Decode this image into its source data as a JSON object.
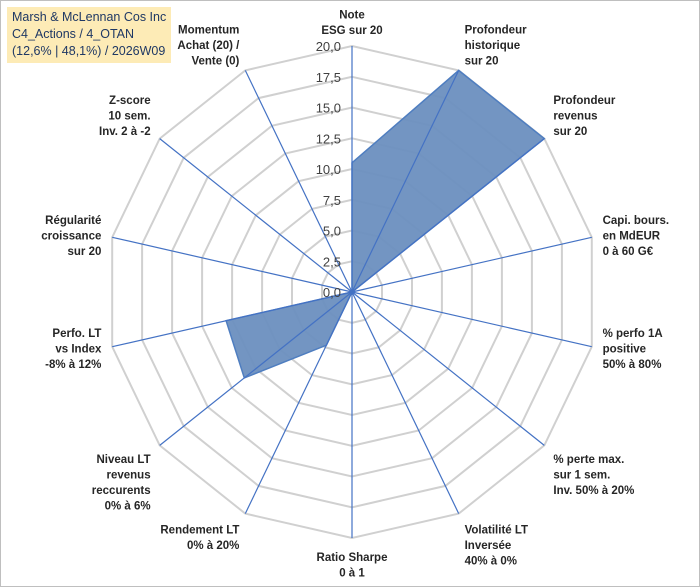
{
  "title": {
    "line1": "Marsh & McLennan Cos Inc",
    "line2": "C4_Actions / 4_OTAN",
    "line3": "(12,6% | 48,1%) / 2026W09"
  },
  "colors": {
    "fill": "#6b8fbf",
    "stroke": "#4f7ec0",
    "grid": "#d0d0d0",
    "spoke": "#4472c4",
    "title_bg": "#fdebb6"
  },
  "chart_data": {
    "type": "radar",
    "ylim": [
      0,
      20
    ],
    "tick_step": 2.5,
    "tick_labels": [
      "0,0",
      "2,5",
      "5,0",
      "7,5",
      "10,0",
      "12,5",
      "15,0",
      "17,5",
      "20,0"
    ],
    "axes": [
      {
        "label": [
          "Note",
          "ESG sur 20"
        ],
        "value": 10.5
      },
      {
        "label": [
          "Profondeur",
          "historique",
          "sur 20"
        ],
        "value": 20
      },
      {
        "label": [
          "Profondeur",
          "revenus",
          "sur 20"
        ],
        "value": 20
      },
      {
        "label": [
          "Capi. bours.",
          "en MdEUR",
          "0 à 60 G€"
        ],
        "value": 0
      },
      {
        "label": [
          "% perfo 1A",
          "positive",
          "50% à 80%"
        ],
        "value": 0
      },
      {
        "label": [
          "% perte max.",
          "sur 1 sem.",
          "Inv. 50% à 20%"
        ],
        "value": 0
      },
      {
        "label": [
          "Volatilité LT",
          "Inversée",
          "40% à 0%"
        ],
        "value": 0
      },
      {
        "label": [
          "Ratio Sharpe",
          "0 à 1"
        ],
        "value": 0
      },
      {
        "label": [
          "Rendement LT",
          "0% à 20%"
        ],
        "value": 4.8
      },
      {
        "label": [
          "Niveau LT",
          "revenus",
          "reccurents",
          "0% à 6%"
        ],
        "value": 11.2
      },
      {
        "label": [
          "Perfo. LT",
          "vs Index",
          "-8% à 12%"
        ],
        "value": 10.5
      },
      {
        "label": [
          "Régularité",
          "croissance",
          "sur 20"
        ],
        "value": 0
      },
      {
        "label": [
          "Z-score",
          "10 sem.",
          "Inv. 2 à -2"
        ],
        "value": 0
      },
      {
        "label": [
          "Momentum",
          "Achat (20) /",
          "Vente (0)"
        ],
        "value": 0
      }
    ]
  }
}
